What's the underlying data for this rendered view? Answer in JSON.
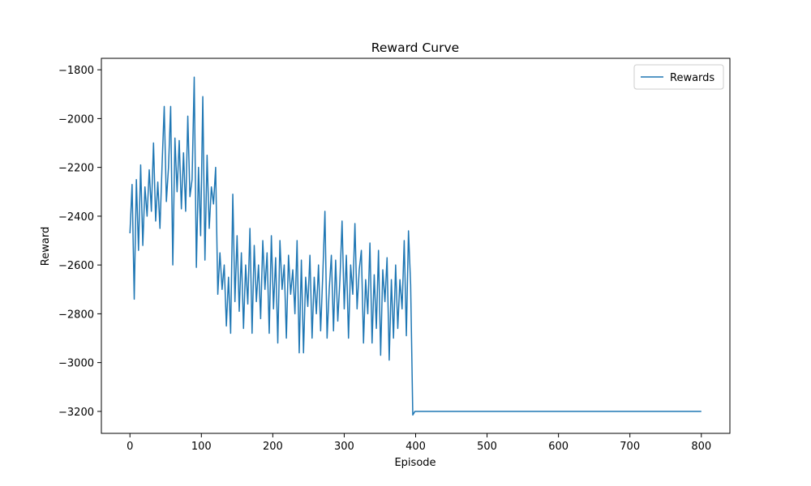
{
  "chart_data": {
    "type": "line",
    "title": "Reward Curve",
    "xlabel": "Episode",
    "ylabel": "Reward",
    "x": [
      0,
      3,
      6,
      9,
      12,
      15,
      18,
      21,
      24,
      27,
      30,
      33,
      36,
      39,
      42,
      45,
      48,
      51,
      54,
      57,
      60,
      63,
      66,
      69,
      72,
      75,
      78,
      81,
      84,
      87,
      90,
      93,
      96,
      99,
      102,
      105,
      108,
      111,
      114,
      117,
      120,
      123,
      126,
      129,
      132,
      135,
      138,
      141,
      144,
      147,
      150,
      153,
      156,
      159,
      162,
      165,
      168,
      171,
      174,
      177,
      180,
      183,
      186,
      189,
      192,
      195,
      198,
      201,
      204,
      207,
      210,
      213,
      216,
      219,
      222,
      225,
      228,
      231,
      234,
      237,
      240,
      243,
      246,
      249,
      252,
      255,
      258,
      261,
      264,
      267,
      270,
      273,
      276,
      279,
      282,
      285,
      288,
      291,
      294,
      297,
      300,
      303,
      306,
      309,
      312,
      315,
      318,
      321,
      324,
      327,
      330,
      333,
      336,
      339,
      342,
      345,
      348,
      351,
      354,
      357,
      360,
      363,
      366,
      369,
      372,
      375,
      378,
      381,
      384,
      387,
      390,
      393,
      396,
      399,
      800
    ],
    "series": [
      {
        "name": "Rewards",
        "color": "#1f77b4",
        "values": [
          -2470,
          -2270,
          -2740,
          -2250,
          -2540,
          -2190,
          -2520,
          -2280,
          -2400,
          -2210,
          -2380,
          -2100,
          -2420,
          -2260,
          -2450,
          -2190,
          -1950,
          -2340,
          -2200,
          -1950,
          -2600,
          -2080,
          -2300,
          -2090,
          -2370,
          -2140,
          -2380,
          -1990,
          -2320,
          -2250,
          -1830,
          -2610,
          -2200,
          -2480,
          -1910,
          -2580,
          -2150,
          -2450,
          -2280,
          -2350,
          -2200,
          -2720,
          -2550,
          -2700,
          -2600,
          -2850,
          -2650,
          -2880,
          -2310,
          -2750,
          -2480,
          -2790,
          -2550,
          -2860,
          -2600,
          -2760,
          -2450,
          -2880,
          -2520,
          -2750,
          -2600,
          -2820,
          -2500,
          -2700,
          -2550,
          -2880,
          -2480,
          -2780,
          -2570,
          -2920,
          -2500,
          -2700,
          -2600,
          -2900,
          -2560,
          -2720,
          -2620,
          -2800,
          -2500,
          -2960,
          -2580,
          -2960,
          -2650,
          -2770,
          -2560,
          -2900,
          -2650,
          -2800,
          -2600,
          -2870,
          -2640,
          -2380,
          -2900,
          -2700,
          -2560,
          -2870,
          -2580,
          -2830,
          -2660,
          -2420,
          -2780,
          -2560,
          -2900,
          -2600,
          -2720,
          -2430,
          -2780,
          -2620,
          -2540,
          -2920,
          -2660,
          -2800,
          -2510,
          -2920,
          -2640,
          -2860,
          -2540,
          -2970,
          -2620,
          -2750,
          -2570,
          -2990,
          -2660,
          -2900,
          -2600,
          -2860,
          -2660,
          -2780,
          -2500,
          -2890,
          -2460,
          -2680,
          -3215,
          -3200,
          -3200
        ]
      }
    ],
    "xlim": [
      -40,
      840
    ],
    "xticks": [
      0,
      100,
      200,
      300,
      400,
      500,
      600,
      700,
      800
    ],
    "ylim": [
      -3290,
      -1753
    ],
    "yticks": [
      {
        "value": -3200,
        "label": "−3200"
      },
      {
        "value": -3000,
        "label": "−3000"
      },
      {
        "value": -2800,
        "label": "−2800"
      },
      {
        "value": -2600,
        "label": "−2600"
      },
      {
        "value": -2400,
        "label": "−2400"
      },
      {
        "value": -2200,
        "label": "−2200"
      },
      {
        "value": -2000,
        "label": "−2000"
      },
      {
        "value": -1800,
        "label": "−1800"
      }
    ],
    "legend": "upper right"
  }
}
